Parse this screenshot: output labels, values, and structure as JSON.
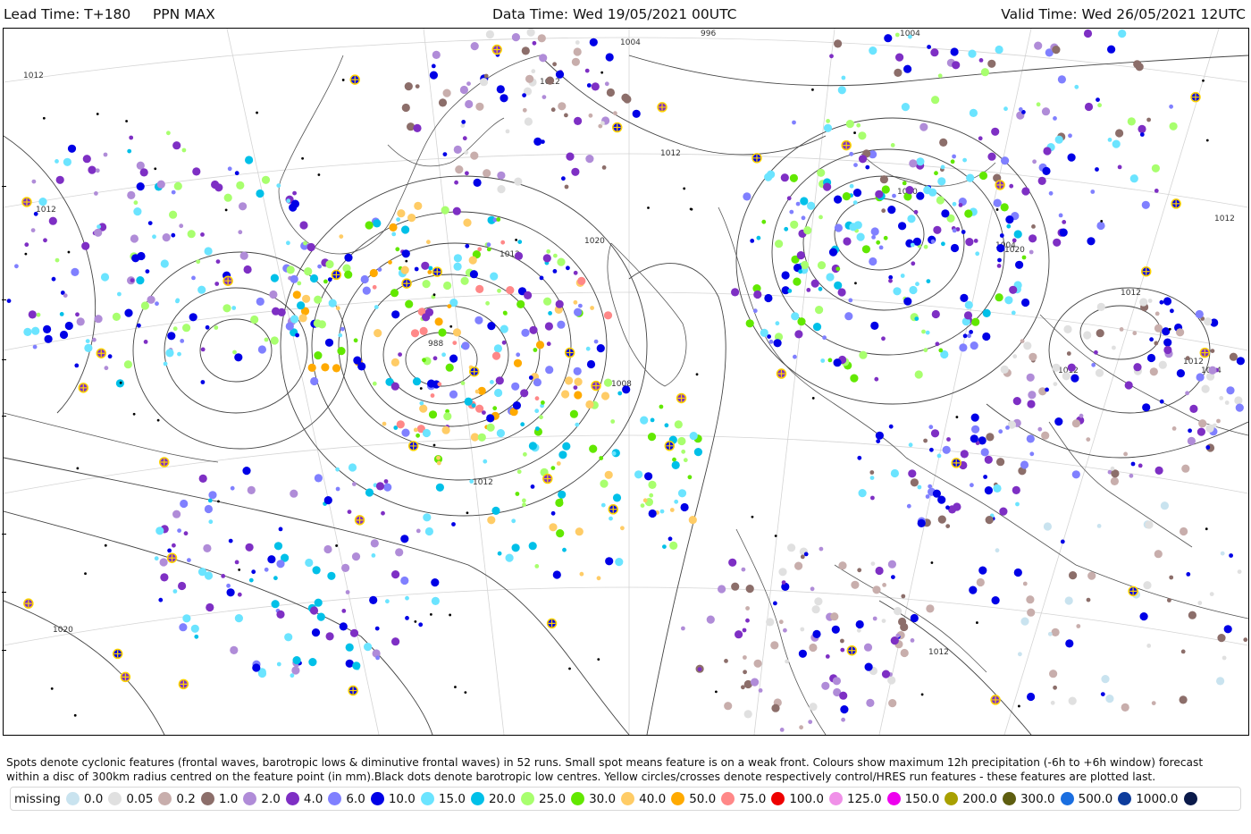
{
  "header": {
    "lead_time": "Lead Time: T+180",
    "parameter": "PPN MAX",
    "data_time": "Data Time: Wed 19/05/2021 00UTC",
    "valid_time": "Valid Time: Wed 26/05/2021 12UTC"
  },
  "caption": {
    "line1": "Spots denote cyclonic features (frontal waves, barotropic lows & diminutive frontal waves) in 52 runs. Small spot means feature is on a weak front. Colours show maximum 12h precipitation (-6h to +6h window) forecast",
    "line2": "within a disc of 300km radius centred on the feature point (in mm).Black dots denote barotropic low centres. Yellow circles/crosses denote respectively control/HRES run features - these features are plotted last."
  },
  "legend": {
    "label": "missing",
    "items": [
      {
        "value": "0.0",
        "color": "#c9e3ef"
      },
      {
        "value": "0.05",
        "color": "#e0e0e0"
      },
      {
        "value": "0.2",
        "color": "#c8aeac"
      },
      {
        "value": "1.0",
        "color": "#8c6e6a"
      },
      {
        "value": "2.0",
        "color": "#b08cd8"
      },
      {
        "value": "4.0",
        "color": "#7e2fc4"
      },
      {
        "value": "6.0",
        "color": "#8080ff"
      },
      {
        "value": "10.0",
        "color": "#0000e6"
      },
      {
        "value": "15.0",
        "color": "#6be4ff"
      },
      {
        "value": "20.0",
        "color": "#00c0e8"
      },
      {
        "value": "25.0",
        "color": "#a8ff6e"
      },
      {
        "value": "30.0",
        "color": "#62e800"
      },
      {
        "value": "40.0",
        "color": "#ffcc66"
      },
      {
        "value": "50.0",
        "color": "#ffaa00"
      },
      {
        "value": "75.0",
        "color": "#ff8888"
      },
      {
        "value": "100.0",
        "color": "#ee0000"
      },
      {
        "value": "125.0",
        "color": "#f090e8"
      },
      {
        "value": "150.0",
        "color": "#ee00ee"
      },
      {
        "value": "200.0",
        "color": "#a8a000"
      },
      {
        "value": "300.0",
        "color": "#5e5e10"
      },
      {
        "value": "500.0",
        "color": "#1a6ee0"
      },
      {
        "value": "1000.0",
        "color": "#0d3c9c"
      },
      {
        "value": "",
        "color": "#0a1a4a"
      }
    ]
  },
  "map": {
    "isobar_labels": [
      "1012",
      "1012",
      "1020",
      "1004",
      "996",
      "1012",
      "1012",
      "1004",
      "1020",
      "1012",
      "1004",
      "1012",
      "1020",
      "1012",
      "1012",
      "1012",
      "1008",
      "988",
      "1012",
      "1012",
      "1004",
      "1020"
    ]
  }
}
